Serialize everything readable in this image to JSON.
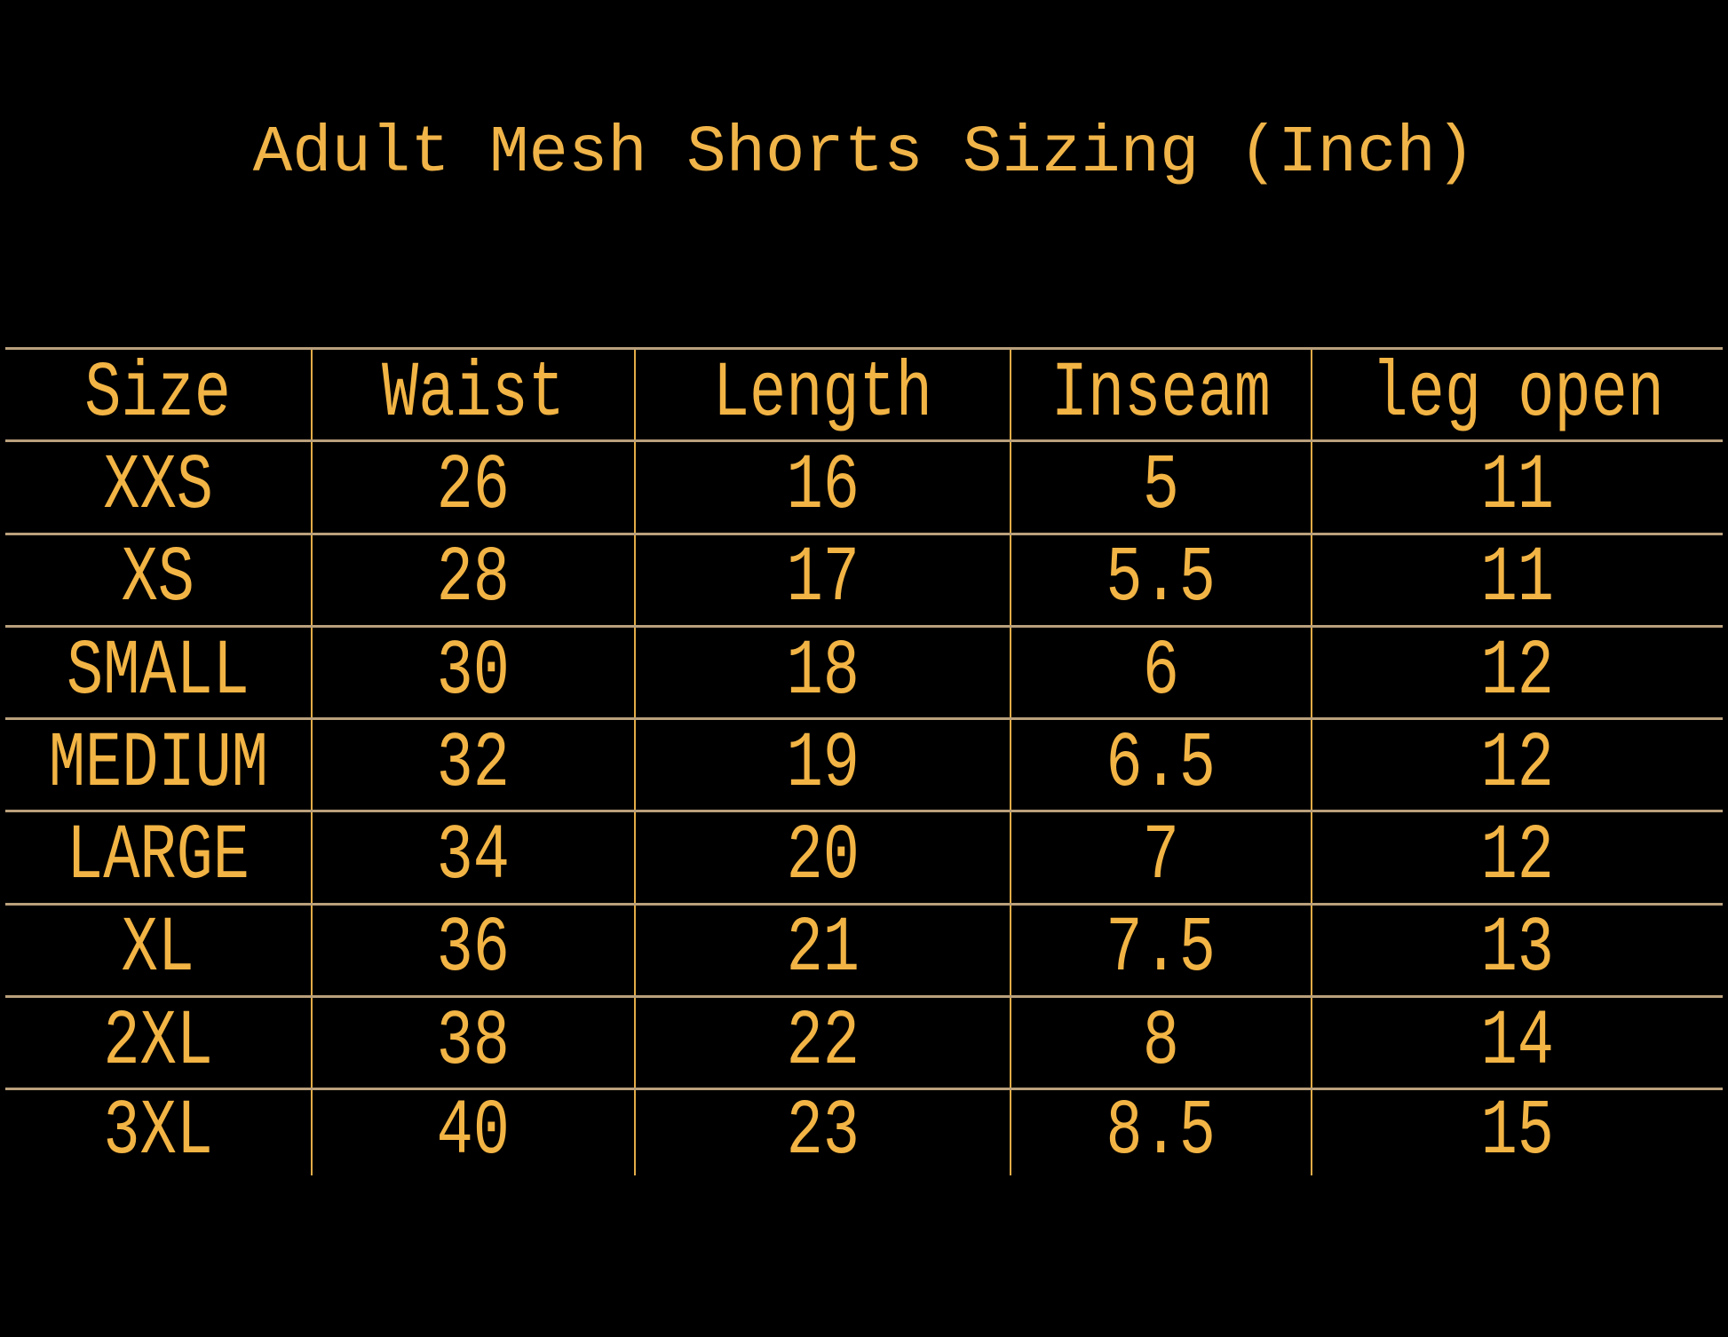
{
  "title": "Adult Mesh Shorts Sizing (Inch)",
  "colors": {
    "background": "#000000",
    "text": "#f2b444",
    "row_lines": "#b9a07c",
    "column_lines": "#e2ac48"
  },
  "table": {
    "headers": [
      "Size",
      "Waist",
      "Length",
      "Inseam",
      "leg open"
    ],
    "rows": [
      [
        "XXS",
        "26",
        "16",
        "5",
        "11"
      ],
      [
        "XS",
        "28",
        "17",
        "5.5",
        "11"
      ],
      [
        "SMALL",
        "30",
        "18",
        "6",
        "12"
      ],
      [
        "MEDIUM",
        "32",
        "19",
        "6.5",
        "12"
      ],
      [
        "LARGE",
        "34",
        "20",
        "7",
        "12"
      ],
      [
        "XL",
        "36",
        "21",
        "7.5",
        "13"
      ],
      [
        "2XL",
        "38",
        "22",
        "8",
        "14"
      ],
      [
        "3XL",
        "40",
        "23",
        "8.5",
        "15"
      ]
    ]
  }
}
